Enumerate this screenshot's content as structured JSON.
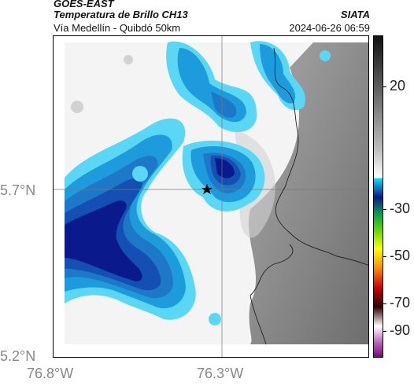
{
  "header": {
    "satellite": "GOES-EAST",
    "product": "Temperatura de Brillo CH13",
    "organization": "SIATA",
    "subtitle": "Vía Medellín - Quibdó 50km",
    "timestamp": "2024-06-26 06:59"
  },
  "map": {
    "lat_labels": [
      "5.7°N",
      "5.2°N"
    ],
    "lon_labels": [
      "76.8°W",
      "76.3°W"
    ],
    "marker": "star-icon",
    "colors": {
      "deep_blue": "#0a1a8c",
      "blue": "#1450b4",
      "mid_blue": "#1e78c8",
      "light_blue": "#1e9bdc",
      "cyan": "#32c8f0",
      "pale_cyan": "#5ad7f5",
      "cloud_white": "#f4f4f4",
      "gray": "#8c8c8c",
      "dark_gray": "#6e6e6e"
    }
  },
  "colorbar": {
    "ticks": [
      "20",
      "-30",
      "-50",
      "-70",
      "-90"
    ],
    "values": [
      20,
      -30,
      -50,
      -70,
      -90
    ],
    "range": [
      -95,
      40
    ]
  }
}
